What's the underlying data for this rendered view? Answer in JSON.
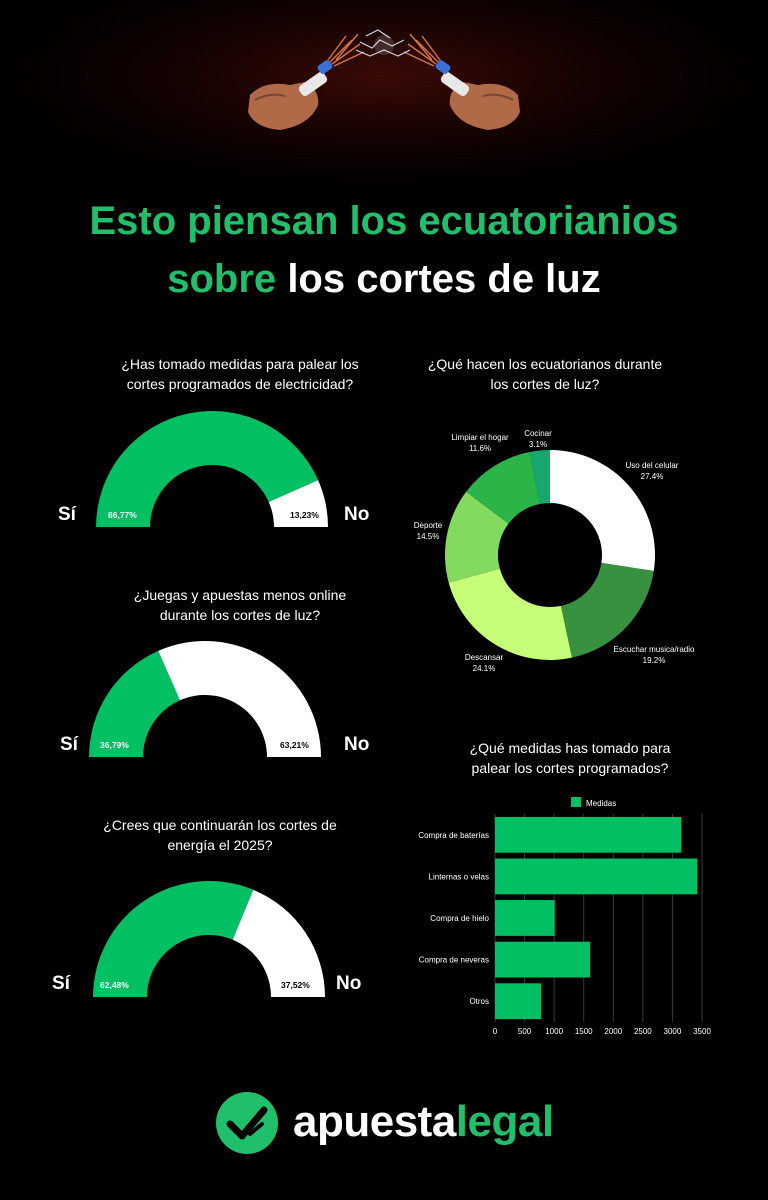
{
  "colors": {
    "green": "#1fbf6b",
    "gauge_green": "#00c063",
    "white": "#ffffff",
    "background": "#000000"
  },
  "header": {
    "title_line1": "Esto piensan los ecuatorianios",
    "title_line2_green": "sobre",
    "title_line2_white": "los cortes de luz"
  },
  "gauges": [
    {
      "question_line1": "¿Has tomado medidas para palear los",
      "question_line2": "cortes programados de electricidad?",
      "yes_label": "Sí",
      "no_label": "No",
      "yes_pct_label": "86,77%",
      "no_pct_label": "13,23%",
      "yes_value": 86.77,
      "no_value": 13.23
    },
    {
      "question_line1": "¿Juegas y apuestas menos online",
      "question_line2": "durante los cortes de luz?",
      "yes_label": "Sí",
      "no_label": "No",
      "yes_pct_label": "36,79%",
      "no_pct_label": "63,21%",
      "yes_value": 36.79,
      "no_value": 63.21
    },
    {
      "question_line1": "¿Crees que continuarán los cortes de",
      "question_line2": "energía el 2025?",
      "yes_label": "Sí",
      "no_label": "No",
      "yes_pct_label": "62,48%",
      "no_pct_label": "37,52%",
      "yes_value": 62.48,
      "no_value": 37.52
    }
  ],
  "donut": {
    "question_line1": "¿Qué hacen los ecuatorianos durante",
    "question_line2": "los cortes de luz?"
  },
  "bar": {
    "question_line1": "¿Qué medidas has tomado para",
    "question_line2": "palear los cortes programados?"
  },
  "chart_data": [
    {
      "type": "pie",
      "title": "¿Qué hacen los ecuatorianos durante los cortes de luz?",
      "categories": [
        "Uso del celular",
        "Escuchar musica/radio",
        "Descansar",
        "Deporte",
        "Limpiar el hogar",
        "Cocinar"
      ],
      "values": [
        27.4,
        19.2,
        24.1,
        14.5,
        11.6,
        3.1
      ],
      "value_labels": [
        "27.4%",
        "19.2%",
        "24.1%",
        "14.5%",
        "11.6%",
        "3.1%"
      ],
      "colors": [
        "#ffffff",
        "#37913f",
        "#c6fe79",
        "#84da5f",
        "#2bb548",
        "#17a870"
      ],
      "hole": "donut"
    },
    {
      "type": "bar",
      "orientation": "horizontal",
      "title": "¿Qué medidas has tomado para palear los cortes programados?",
      "categories": [
        "Compra de baterías",
        "Linternas o velas",
        "Compra de hielo",
        "Compra de neveras",
        "Otros"
      ],
      "series": [
        {
          "name": "Medidas",
          "values": [
            3150,
            3420,
            1010,
            1610,
            780
          ],
          "color": "#00c063"
        }
      ],
      "xlim": [
        0,
        3500
      ],
      "xticks": [
        "0",
        "500",
        "1000",
        "1500",
        "2000",
        "2500",
        "3000",
        "3500"
      ],
      "grid": true,
      "legend": "top"
    }
  ],
  "footer": {
    "brand_part1": "apuesta",
    "brand_part2": "legal"
  }
}
